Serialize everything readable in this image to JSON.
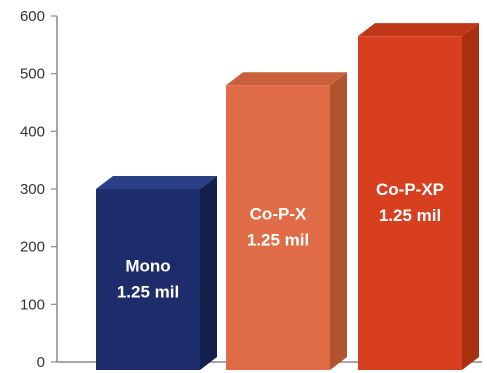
{
  "chart_data": {
    "type": "bar",
    "title": "",
    "xlabel": "",
    "ylabel": "",
    "ylim": [
      0,
      600
    ],
    "yticks": [
      0,
      100,
      200,
      300,
      400,
      500,
      600
    ],
    "grid": false,
    "legend": "none",
    "categories": [
      "Mono\n1.25 mil",
      "Co-P-X\n1.25 mil",
      "Co-P-XP\n1.25 mil"
    ],
    "values": [
      300,
      480,
      565
    ],
    "label_lines": [
      [
        "Mono",
        "1.25 mil"
      ],
      [
        "Co-P-X",
        "1.25 mil"
      ],
      [
        "Co-P-XP",
        "1.25 mil"
      ]
    ],
    "colors": {
      "front": [
        "#1d2d6b",
        "#e06c47",
        "#d83f1f"
      ],
      "side": [
        "#141f4c",
        "#b3522f",
        "#a9300f"
      ],
      "top": [
        "#2a3f85",
        "#c9603b",
        "#bf3717"
      ],
      "axis": "#888888"
    }
  }
}
